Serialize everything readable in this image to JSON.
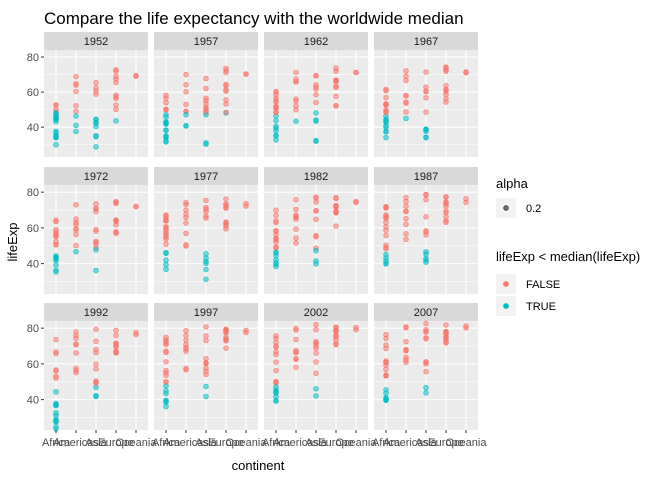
{
  "chart_data": {
    "type": "scatter",
    "title": "Compare the life expectancy with the worldwide median",
    "xlabel": "continent",
    "ylabel": "lifeExp",
    "categories": [
      "Africa",
      "Americas",
      "Asia",
      "Europe",
      "Oceania"
    ],
    "ylim": [
      23,
      84
    ],
    "yticks": [
      40,
      60,
      80
    ],
    "grid": true,
    "legend_position": "right",
    "median_threshold": 48.2,
    "colors": {
      "FALSE": "#f8766d",
      "TRUE": "#00bfc4",
      "panel_bg": "#ebebeb",
      "strip_bg": "#d9d9d9",
      "grid": "#ffffff"
    },
    "legend": {
      "alpha": {
        "title": "alpha",
        "label": "0.2"
      },
      "color": {
        "title": "lifeExp < median(lifeExp)",
        "entries": [
          "FALSE",
          "TRUE"
        ]
      }
    },
    "panels": [
      {
        "year": "1952",
        "ranges": {
          "Africa": [
            30.0,
            52.7
          ],
          "Americas": [
            37.6,
            68.8
          ],
          "Asia": [
            28.8,
            65.4
          ],
          "Europe": [
            43.6,
            72.7
          ],
          "Oceania": [
            69.1,
            69.4
          ]
        }
      },
      {
        "year": "1957",
        "ranges": {
          "Africa": [
            31.6,
            58.1
          ],
          "Americas": [
            40.7,
            70.0
          ],
          "Asia": [
            30.3,
            67.8
          ],
          "Europe": [
            48.1,
            73.5
          ],
          "Oceania": [
            70.3,
            70.3
          ]
        }
      },
      {
        "year": "1962",
        "ranges": {
          "Africa": [
            32.8,
            60.2
          ],
          "Americas": [
            43.4,
            71.3
          ],
          "Asia": [
            32.0,
            69.4
          ],
          "Europe": [
            52.1,
            73.7
          ],
          "Oceania": [
            71.2,
            71.2
          ]
        }
      },
      {
        "year": "1967",
        "ranges": {
          "Africa": [
            34.1,
            61.6
          ],
          "Americas": [
            45.0,
            72.1
          ],
          "Asia": [
            34.0,
            71.4
          ],
          "Europe": [
            54.3,
            74.2
          ],
          "Oceania": [
            71.1,
            71.5
          ]
        }
      },
      {
        "year": "1972",
        "ranges": {
          "Africa": [
            35.4,
            64.3
          ],
          "Americas": [
            46.7,
            72.9
          ],
          "Asia": [
            36.1,
            73.4
          ],
          "Europe": [
            57.0,
            74.7
          ],
          "Oceania": [
            71.9,
            71.9
          ]
        }
      },
      {
        "year": "1977",
        "ranges": {
          "Africa": [
            36.8,
            67.1
          ],
          "Americas": [
            49.9,
            74.2
          ],
          "Asia": [
            31.2,
            75.4
          ],
          "Europe": [
            59.5,
            76.1
          ],
          "Oceania": [
            72.2,
            73.5
          ]
        }
      },
      {
        "year": "1982",
        "ranges": {
          "Africa": [
            38.4,
            69.9
          ],
          "Americas": [
            51.5,
            75.8
          ],
          "Asia": [
            39.9,
            77.1
          ],
          "Europe": [
            61.0,
            76.9
          ],
          "Oceania": [
            74.3,
            74.7
          ]
        }
      },
      {
        "year": "1987",
        "ranges": {
          "Africa": [
            39.9,
            71.9
          ],
          "Americas": [
            53.6,
            76.9
          ],
          "Asia": [
            40.8,
            78.7
          ],
          "Europe": [
            63.1,
            77.4
          ],
          "Oceania": [
            74.3,
            76.3
          ]
        }
      },
      {
        "year": "1992",
        "ranges": {
          "Africa": [
            23.6,
            73.6
          ],
          "Americas": [
            55.1,
            77.9
          ],
          "Asia": [
            41.7,
            79.4
          ],
          "Europe": [
            66.1,
            78.8
          ],
          "Oceania": [
            76.3,
            77.6
          ]
        }
      },
      {
        "year": "1997",
        "ranges": {
          "Africa": [
            36.1,
            74.8
          ],
          "Americas": [
            56.7,
            78.6
          ],
          "Asia": [
            41.8,
            80.7
          ],
          "Europe": [
            68.8,
            79.4
          ],
          "Oceania": [
            77.6,
            78.8
          ]
        }
      },
      {
        "year": "2002",
        "ranges": {
          "Africa": [
            39.2,
            75.7
          ],
          "Americas": [
            58.1,
            79.8
          ],
          "Asia": [
            42.1,
            82.0
          ],
          "Europe": [
            70.8,
            80.6
          ],
          "Oceania": [
            79.1,
            80.4
          ]
        }
      },
      {
        "year": "2007",
        "ranges": {
          "Africa": [
            39.6,
            76.4
          ],
          "Americas": [
            60.9,
            80.7
          ],
          "Asia": [
            43.8,
            82.6
          ],
          "Europe": [
            71.8,
            81.8
          ],
          "Oceania": [
            80.2,
            81.2
          ]
        }
      }
    ]
  }
}
